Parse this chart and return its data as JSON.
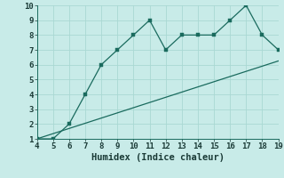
{
  "xlabel": "Humidex (Indice chaleur)",
  "x_data": [
    4,
    5,
    6,
    7,
    8,
    9,
    10,
    11,
    12,
    13,
    14,
    15,
    16,
    17,
    18,
    19
  ],
  "y_curve": [
    1,
    1,
    2,
    4,
    6,
    7,
    8,
    9,
    7,
    8,
    8,
    8,
    9,
    10,
    8,
    7
  ],
  "y_line_x": [
    4,
    19
  ],
  "y_line_y": [
    1,
    6.25
  ],
  "xlim": [
    4,
    19
  ],
  "ylim": [
    1,
    10
  ],
  "xticks": [
    4,
    5,
    6,
    7,
    8,
    9,
    10,
    11,
    12,
    13,
    14,
    15,
    16,
    17,
    18,
    19
  ],
  "yticks": [
    1,
    2,
    3,
    4,
    5,
    6,
    7,
    8,
    9,
    10
  ],
  "curve_color": "#1a6b5e",
  "line_color": "#1a6b5e",
  "bg_color": "#c8ebe8",
  "grid_color": "#aad8d3",
  "tick_fontsize": 6.5,
  "label_fontsize": 7.5,
  "marker_size": 2.5,
  "line_width": 0.9
}
